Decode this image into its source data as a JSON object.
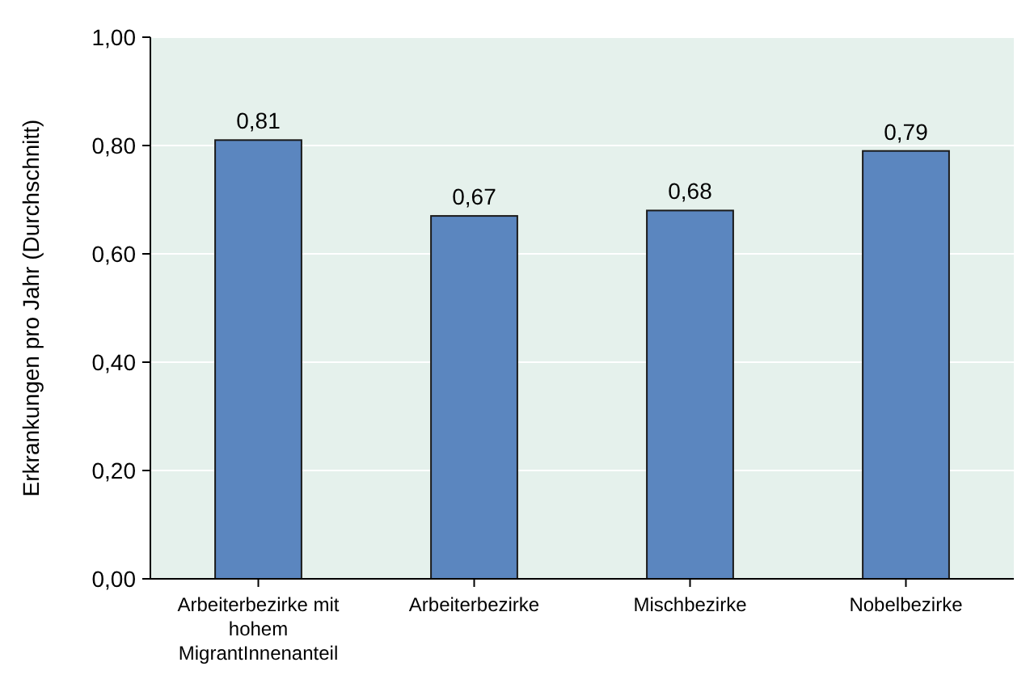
{
  "chart_data": {
    "type": "bar",
    "ylabel": "Erkrankungen pro Jahr (Durchschnitt)",
    "categories": [
      "Arbeiterbezirke mit hohem MigrantInnenanteil",
      "Arbeiterbezirke",
      "Mischbezirke",
      "Nobelbezirke"
    ],
    "values": [
      0.81,
      0.67,
      0.68,
      0.79
    ],
    "value_labels": [
      "0,81",
      "0,67",
      "0,68",
      "0,79"
    ],
    "color": "#5b86bf",
    "ylim": [
      0,
      1
    ],
    "yticks": [
      {
        "value": 0,
        "label": "0,00"
      },
      {
        "value": 0.2,
        "label": "0,20"
      },
      {
        "value": 0.4,
        "label": "0,40"
      },
      {
        "value": 0.6,
        "label": "0,60"
      },
      {
        "value": 0.8,
        "label": "0,80"
      },
      {
        "value": 1,
        "label": "1,00"
      }
    ],
    "grid": "y"
  }
}
